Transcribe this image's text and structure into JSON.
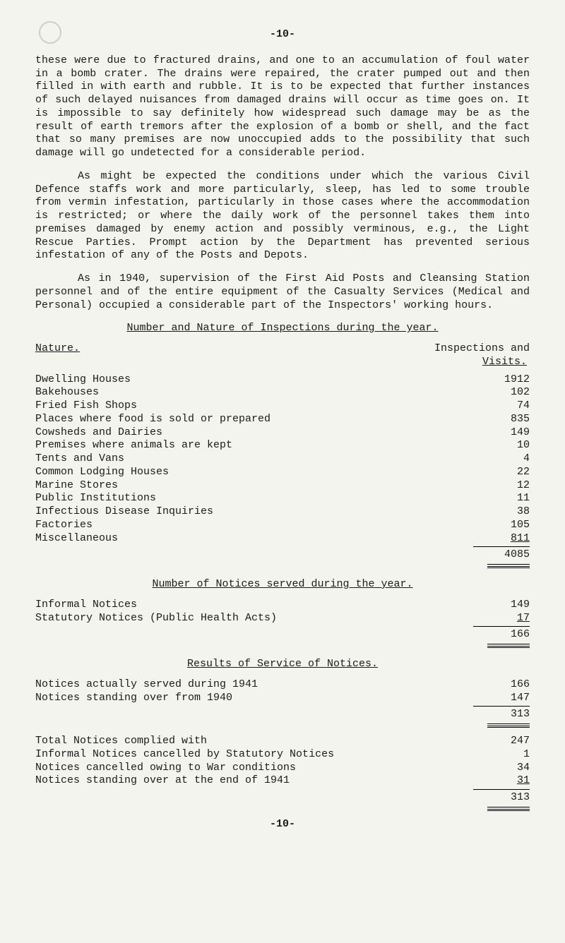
{
  "pageNumber": "-10-",
  "para1": "these were due to fractured drains, and one to an accumulation of foul water in a bomb crater.  The drains were repaired, the crater pumped out and then filled in with earth and rubble.  It is to be expected that further instances of such delayed nuisances from damaged drains will occur as time goes on.  It is impossible to say definitely how widespread such damage may be as the result of earth tremors after the explosion of a bomb or shell, and the fact that so many premises are now unoccupied adds to the possibility that such damage will go undetected for a considerable period.",
  "para2": "As might be expected the conditions under which the various Civil Defence staffs work and more particularly, sleep, has led to some trouble from vermin infestation, particularly in those cases where the accommodation is restricted; or where the daily work of the personnel takes them into premises damaged by enemy action and possibly verminous, e.g., the Light Rescue Parties.  Prompt action by the Department has prevented serious infestation of any of the Posts and Depots.",
  "para3": "As in 1940, supervision of the First Aid Posts and Cleansing Station personnel and of the entire equipment of the Casualty Services (Medical and Personal) occupied a considerable part of the Inspectors' working hours.",
  "table1": {
    "title": "Number and Nature of Inspections during the year.",
    "natureLabel": "Nature.",
    "colHead1": "Inspections and",
    "colHead2": "Visits.",
    "rows": [
      {
        "label": "Dwelling Houses",
        "value": "1912"
      },
      {
        "label": "Bakehouses",
        "value": "102"
      },
      {
        "label": "Fried Fish Shops",
        "value": "74"
      },
      {
        "label": "Places where food is sold or prepared",
        "value": "835"
      },
      {
        "label": "Cowsheds and Dairies",
        "value": "149"
      },
      {
        "label": "Premises where animals are kept",
        "value": "10"
      },
      {
        "label": "Tents and Vans",
        "value": "4"
      },
      {
        "label": "Common Lodging Houses",
        "value": "22"
      },
      {
        "label": "Marine Stores",
        "value": "12"
      },
      {
        "label": "Public Institutions",
        "value": "11"
      },
      {
        "label": "Infectious Disease Inquiries",
        "value": "38"
      },
      {
        "label": "Factories",
        "value": "105"
      },
      {
        "label": "Miscellaneous",
        "value": "811"
      }
    ],
    "total": "4085"
  },
  "table2": {
    "title": "Number of Notices served during the year.",
    "rows": [
      {
        "label": "Informal Notices",
        "value": "149"
      },
      {
        "label": "Statutory Notices (Public Health Acts)",
        "value": "17"
      }
    ],
    "total": "166"
  },
  "table3": {
    "title": "Results of Service of Notices.",
    "group1": [
      {
        "label": "Notices actually served during 1941",
        "value": "166"
      },
      {
        "label": "Notices standing over from 1940",
        "value": "147"
      }
    ],
    "total1": "313",
    "group2": [
      {
        "label": "Total Notices complied with",
        "value": "247"
      },
      {
        "label": "Informal Notices cancelled by Statutory Notices",
        "value": "1"
      },
      {
        "label": "Notices cancelled owing to War conditions",
        "value": "34"
      },
      {
        "label": "Notices standing over at the end of 1941",
        "value": "31"
      }
    ],
    "total2": "313"
  },
  "footer": "-10-"
}
